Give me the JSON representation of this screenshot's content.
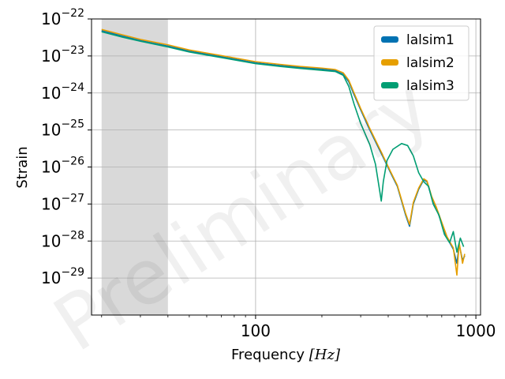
{
  "chart_data": {
    "type": "line",
    "xlabel": "Frequency",
    "xlabel_unit": "[Hz]",
    "ylabel": "Strain",
    "xscale": "log",
    "yscale": "log",
    "xlim": [
      18,
      1050
    ],
    "ylim": [
      1e-30,
      1e-22
    ],
    "xticks": [
      100,
      1000
    ],
    "xtick_labels": [
      "100",
      "1000"
    ],
    "ytick_exponents": [
      -29,
      -28,
      -27,
      -26,
      -25,
      -24,
      -23,
      -22
    ],
    "ytick_base": "10",
    "grid": true,
    "legend_position": "top-right",
    "shaded_region": {
      "x": [
        20,
        40
      ],
      "color": "#d9d9d9"
    },
    "watermark": "Preliminary",
    "series": [
      {
        "name": "lalsim1",
        "color": "#0072b2",
        "points": [
          [
            20,
            4.8e-23
          ],
          [
            25,
            3.4e-23
          ],
          [
            30,
            2.6e-23
          ],
          [
            40,
            1.85e-23
          ],
          [
            50,
            1.35e-23
          ],
          [
            70,
            9.5e-24
          ],
          [
            100,
            6.5e-24
          ],
          [
            130,
            5.5e-24
          ],
          [
            160,
            4.9e-24
          ],
          [
            200,
            4.4e-24
          ],
          [
            230,
            4e-24
          ],
          [
            250,
            3.2e-24
          ],
          [
            265,
            2e-24
          ],
          [
            280,
            9e-25
          ],
          [
            300,
            3.5e-25
          ],
          [
            330,
            1e-25
          ],
          [
            370,
            2.5e-26
          ],
          [
            410,
            7e-27
          ],
          [
            440,
            3e-27
          ],
          [
            460,
            1.2e-27
          ],
          [
            480,
            5e-28
          ],
          [
            500,
            2.5e-28
          ],
          [
            520,
            1e-27
          ],
          [
            550,
            2.5e-27
          ],
          [
            580,
            4.5e-27
          ],
          [
            600,
            4e-27
          ],
          [
            630,
            1.5e-27
          ],
          [
            660,
            8e-28
          ],
          [
            700,
            3e-28
          ],
          [
            740,
            1.2e-28
          ],
          [
            790,
            6e-29
          ],
          [
            820,
            2.5e-29
          ],
          [
            840,
            8e-29
          ],
          [
            870,
            3e-29
          ],
          [
            890,
            4e-29
          ]
        ]
      },
      {
        "name": "lalsim2",
        "color": "#e69f00",
        "points": [
          [
            20,
            5.2e-23
          ],
          [
            25,
            3.7e-23
          ],
          [
            30,
            2.8e-23
          ],
          [
            40,
            2e-23
          ],
          [
            50,
            1.45e-23
          ],
          [
            70,
            1.02e-23
          ],
          [
            100,
            7e-24
          ],
          [
            130,
            5.9e-24
          ],
          [
            160,
            5.2e-24
          ],
          [
            200,
            4.7e-24
          ],
          [
            230,
            4.3e-24
          ],
          [
            250,
            3.5e-24
          ],
          [
            265,
            2.2e-24
          ],
          [
            280,
            1e-24
          ],
          [
            300,
            3.8e-25
          ],
          [
            330,
            1.1e-25
          ],
          [
            370,
            2.7e-26
          ],
          [
            410,
            7.5e-27
          ],
          [
            440,
            3.2e-27
          ],
          [
            460,
            1.3e-27
          ],
          [
            480,
            5.5e-28
          ],
          [
            500,
            2.8e-28
          ],
          [
            520,
            1.1e-27
          ],
          [
            550,
            2.7e-27
          ],
          [
            580,
            4.8e-27
          ],
          [
            600,
            4.2e-27
          ],
          [
            630,
            1.6e-27
          ],
          [
            660,
            8.5e-28
          ],
          [
            700,
            3.2e-28
          ],
          [
            740,
            1.3e-28
          ],
          [
            790,
            6.5e-29
          ],
          [
            820,
            1.2e-29
          ],
          [
            840,
            9e-29
          ],
          [
            870,
            2.5e-29
          ],
          [
            890,
            4.5e-29
          ]
        ]
      },
      {
        "name": "lalsim3",
        "color": "#009e73",
        "points": [
          [
            20,
            4.5e-23
          ],
          [
            25,
            3.2e-23
          ],
          [
            30,
            2.5e-23
          ],
          [
            40,
            1.75e-23
          ],
          [
            50,
            1.28e-23
          ],
          [
            70,
            9e-24
          ],
          [
            100,
            6.2e-24
          ],
          [
            130,
            5.2e-24
          ],
          [
            160,
            4.6e-24
          ],
          [
            200,
            4.1e-24
          ],
          [
            230,
            3.8e-24
          ],
          [
            250,
            3e-24
          ],
          [
            265,
            1.5e-24
          ],
          [
            280,
            5e-25
          ],
          [
            300,
            1.5e-25
          ],
          [
            330,
            4e-26
          ],
          [
            350,
            1.2e-26
          ],
          [
            365,
            2.5e-27
          ],
          [
            372,
            1.2e-27
          ],
          [
            380,
            4e-27
          ],
          [
            395,
            1.5e-26
          ],
          [
            420,
            3e-26
          ],
          [
            460,
            4.3e-26
          ],
          [
            490,
            3.8e-26
          ],
          [
            520,
            2e-26
          ],
          [
            550,
            7e-27
          ],
          [
            580,
            4e-27
          ],
          [
            610,
            3e-27
          ],
          [
            640,
            1e-27
          ],
          [
            680,
            5e-28
          ],
          [
            720,
            1.5e-28
          ],
          [
            760,
            9e-29
          ],
          [
            790,
            1.8e-28
          ],
          [
            820,
            5e-29
          ],
          [
            850,
            1.2e-28
          ],
          [
            880,
            7e-29
          ]
        ]
      }
    ]
  }
}
